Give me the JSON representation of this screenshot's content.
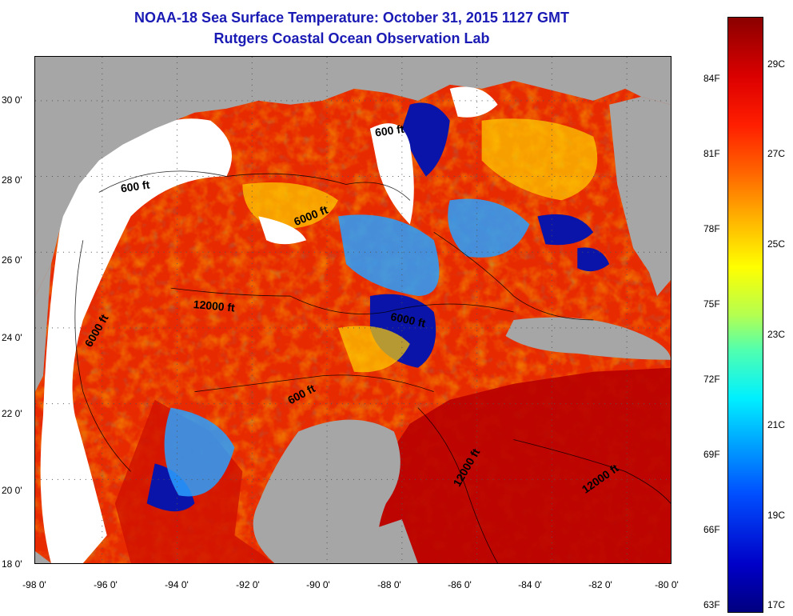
{
  "title": "NOAA-18 Sea Surface Temperature:  October 31, 2015 1127 GMT",
  "subtitle": "Rutgers Coastal Ocean Observation Lab",
  "x_ticks": [
    "-98 0'",
    "-96 0'",
    "-94 0'",
    "-92 0'",
    "-90 0'",
    "-88 0'",
    "-86 0'",
    "-84 0'",
    "-82 0'",
    "-80 0'"
  ],
  "y_ticks": [
    "30 0'",
    "28 0'",
    "26 0'",
    "24 0'",
    "22 0'",
    "20 0'",
    "18 0'"
  ],
  "colorbar_f": [
    "84F",
    "81F",
    "78F",
    "75F",
    "72F",
    "69F",
    "66F",
    "63F"
  ],
  "colorbar_c": [
    "29C",
    "27C",
    "25C",
    "23C",
    "21C",
    "19C",
    "17C"
  ],
  "contour_labels": [
    "600 ft",
    "6000 ft",
    "12000 ft",
    "6000 ft",
    "6000 ft",
    "600 ft",
    "600 ft",
    "12000 ft",
    "12000 ft"
  ],
  "colors": {
    "title": "#1a1ab4",
    "land": "#a6a6a6",
    "no_data": "#ffffff",
    "warm": "#e02000",
    "hot": "#b00000",
    "cold": "#0010a0"
  }
}
